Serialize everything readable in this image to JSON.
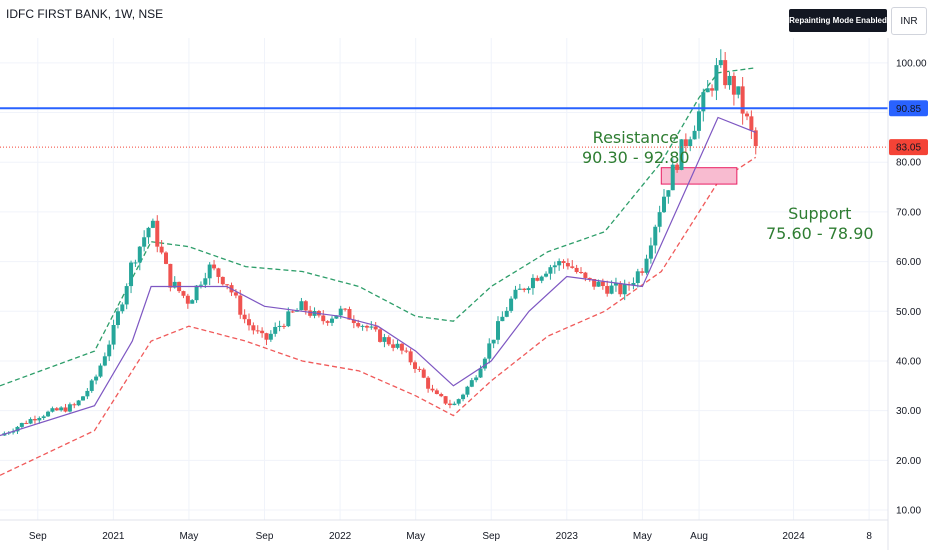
{
  "header": {
    "symbol_title": "IDFC FIRST BANK, 1W, NSE",
    "mode_badge": "Repainting Mode Enabled",
    "currency_button": "INR"
  },
  "annotations": {
    "resistance_title": "Resistance",
    "resistance_range": "90.30 - 92.80",
    "support_title": "Support",
    "support_range": "75.60 - 78.90"
  },
  "colors": {
    "up": "#26a69a",
    "down": "#ef5350",
    "resistance_line": "#2962ff",
    "current_price_line": "#f44336",
    "upper_band": "#2e9e6a",
    "lower_band": "#f05a5a",
    "ma": "#7e57c2",
    "support_zone_fill": "#f8bbd0",
    "support_zone_border": "#e91e63",
    "annotation_text": "#2e7d32"
  },
  "chart_data": {
    "type": "candlestick",
    "symbol": "IDFC FIRST BANK",
    "interval": "1W",
    "exchange": "NSE",
    "ylim": [
      8,
      105
    ],
    "y_ticks": [
      10,
      20,
      30,
      40,
      50,
      60,
      70,
      80,
      90,
      100
    ],
    "y_tick_labels": [
      "10.00",
      "20.00",
      "30.00",
      "40.00",
      "50.00",
      "60.00",
      "70.00",
      "80.00",
      "90.00",
      "100.00"
    ],
    "x_tick_labels": [
      "Sep",
      "2021",
      "May",
      "Sep",
      "2022",
      "May",
      "Sep",
      "2023",
      "May",
      "Aug",
      "2024",
      "8"
    ],
    "x_ticks": [
      "2020-09",
      "2021-01",
      "2021-05",
      "2021-09",
      "2022-01",
      "2022-05",
      "2022-09",
      "2023-01",
      "2023-05",
      "2023-08",
      "2024-01",
      "2024-05"
    ],
    "x_range": [
      "2020-07",
      "2024-06"
    ],
    "grid": true,
    "horizontal_lines": [
      {
        "name": "resistance",
        "value": 90.85,
        "label": "90.85"
      },
      {
        "name": "current_price",
        "value": 83.05,
        "label": "83.05"
      }
    ],
    "support_zone": {
      "from": "2023-06",
      "to": "2023-10",
      "low": 75.6,
      "high": 78.9
    },
    "price_path": [
      [
        "2020-07",
        25
      ],
      [
        "2020-09",
        29
      ],
      [
        "2020-11",
        31
      ],
      [
        "2020-12",
        36
      ],
      [
        "2021-01",
        46
      ],
      [
        "2021-02",
        60
      ],
      [
        "2021-03",
        68
      ],
      [
        "2021-04",
        56
      ],
      [
        "2021-05",
        52
      ],
      [
        "2021-06",
        59
      ],
      [
        "2021-07",
        56
      ],
      [
        "2021-08",
        48
      ],
      [
        "2021-09",
        44
      ],
      [
        "2021-10",
        48
      ],
      [
        "2021-11",
        51
      ],
      [
        "2021-12",
        48
      ],
      [
        "2022-01",
        50
      ],
      [
        "2022-02",
        48
      ],
      [
        "2022-03",
        45
      ],
      [
        "2022-04",
        43
      ],
      [
        "2022-05",
        39
      ],
      [
        "2022-06",
        33
      ],
      [
        "2022-07",
        31
      ],
      [
        "2022-08",
        36
      ],
      [
        "2022-09",
        44
      ],
      [
        "2022-10",
        52
      ],
      [
        "2022-11",
        56
      ],
      [
        "2022-12",
        59
      ],
      [
        "2023-01",
        60
      ],
      [
        "2023-02",
        56
      ],
      [
        "2023-03",
        55
      ],
      [
        "2023-04",
        54
      ],
      [
        "2023-05",
        59
      ],
      [
        "2023-06",
        72
      ],
      [
        "2023-07",
        82
      ],
      [
        "2023-08",
        90
      ],
      [
        "2023-09",
        99
      ],
      [
        "2023-10",
        94
      ],
      [
        "2023-11",
        83
      ]
    ],
    "upper_band": [
      [
        "2020-07",
        35
      ],
      [
        "2020-12",
        42
      ],
      [
        "2021-03",
        64
      ],
      [
        "2021-05",
        63
      ],
      [
        "2021-08",
        59
      ],
      [
        "2021-11",
        58
      ],
      [
        "2022-02",
        55
      ],
      [
        "2022-05",
        49
      ],
      [
        "2022-07",
        48
      ],
      [
        "2022-09",
        55
      ],
      [
        "2022-12",
        62
      ],
      [
        "2023-03",
        66
      ],
      [
        "2023-06",
        80
      ],
      [
        "2023-08",
        93
      ],
      [
        "2023-09",
        98
      ],
      [
        "2023-11",
        99
      ]
    ],
    "lower_band": [
      [
        "2020-07",
        17
      ],
      [
        "2020-12",
        26
      ],
      [
        "2021-03",
        44
      ],
      [
        "2021-05",
        47
      ],
      [
        "2021-08",
        44
      ],
      [
        "2021-11",
        40
      ],
      [
        "2022-02",
        38
      ],
      [
        "2022-05",
        33
      ],
      [
        "2022-07",
        29
      ],
      [
        "2022-09",
        36
      ],
      [
        "2022-12",
        45
      ],
      [
        "2023-03",
        50
      ],
      [
        "2023-06",
        58
      ],
      [
        "2023-08",
        70
      ],
      [
        "2023-09",
        76
      ],
      [
        "2023-11",
        81
      ]
    ],
    "moving_average": [
      [
        "2020-07",
        25
      ],
      [
        "2020-12",
        31
      ],
      [
        "2021-02",
        44
      ],
      [
        "2021-03",
        55
      ],
      [
        "2021-05",
        55
      ],
      [
        "2021-07",
        55
      ],
      [
        "2021-09",
        51
      ],
      [
        "2021-11",
        50
      ],
      [
        "2022-01",
        49
      ],
      [
        "2022-03",
        47
      ],
      [
        "2022-05",
        42
      ],
      [
        "2022-07",
        35
      ],
      [
        "2022-09",
        40
      ],
      [
        "2022-11",
        50
      ],
      [
        "2023-01",
        57
      ],
      [
        "2023-03",
        56
      ],
      [
        "2023-05",
        55
      ],
      [
        "2023-07",
        72
      ],
      [
        "2023-09",
        89
      ],
      [
        "2023-11",
        86
      ]
    ]
  }
}
